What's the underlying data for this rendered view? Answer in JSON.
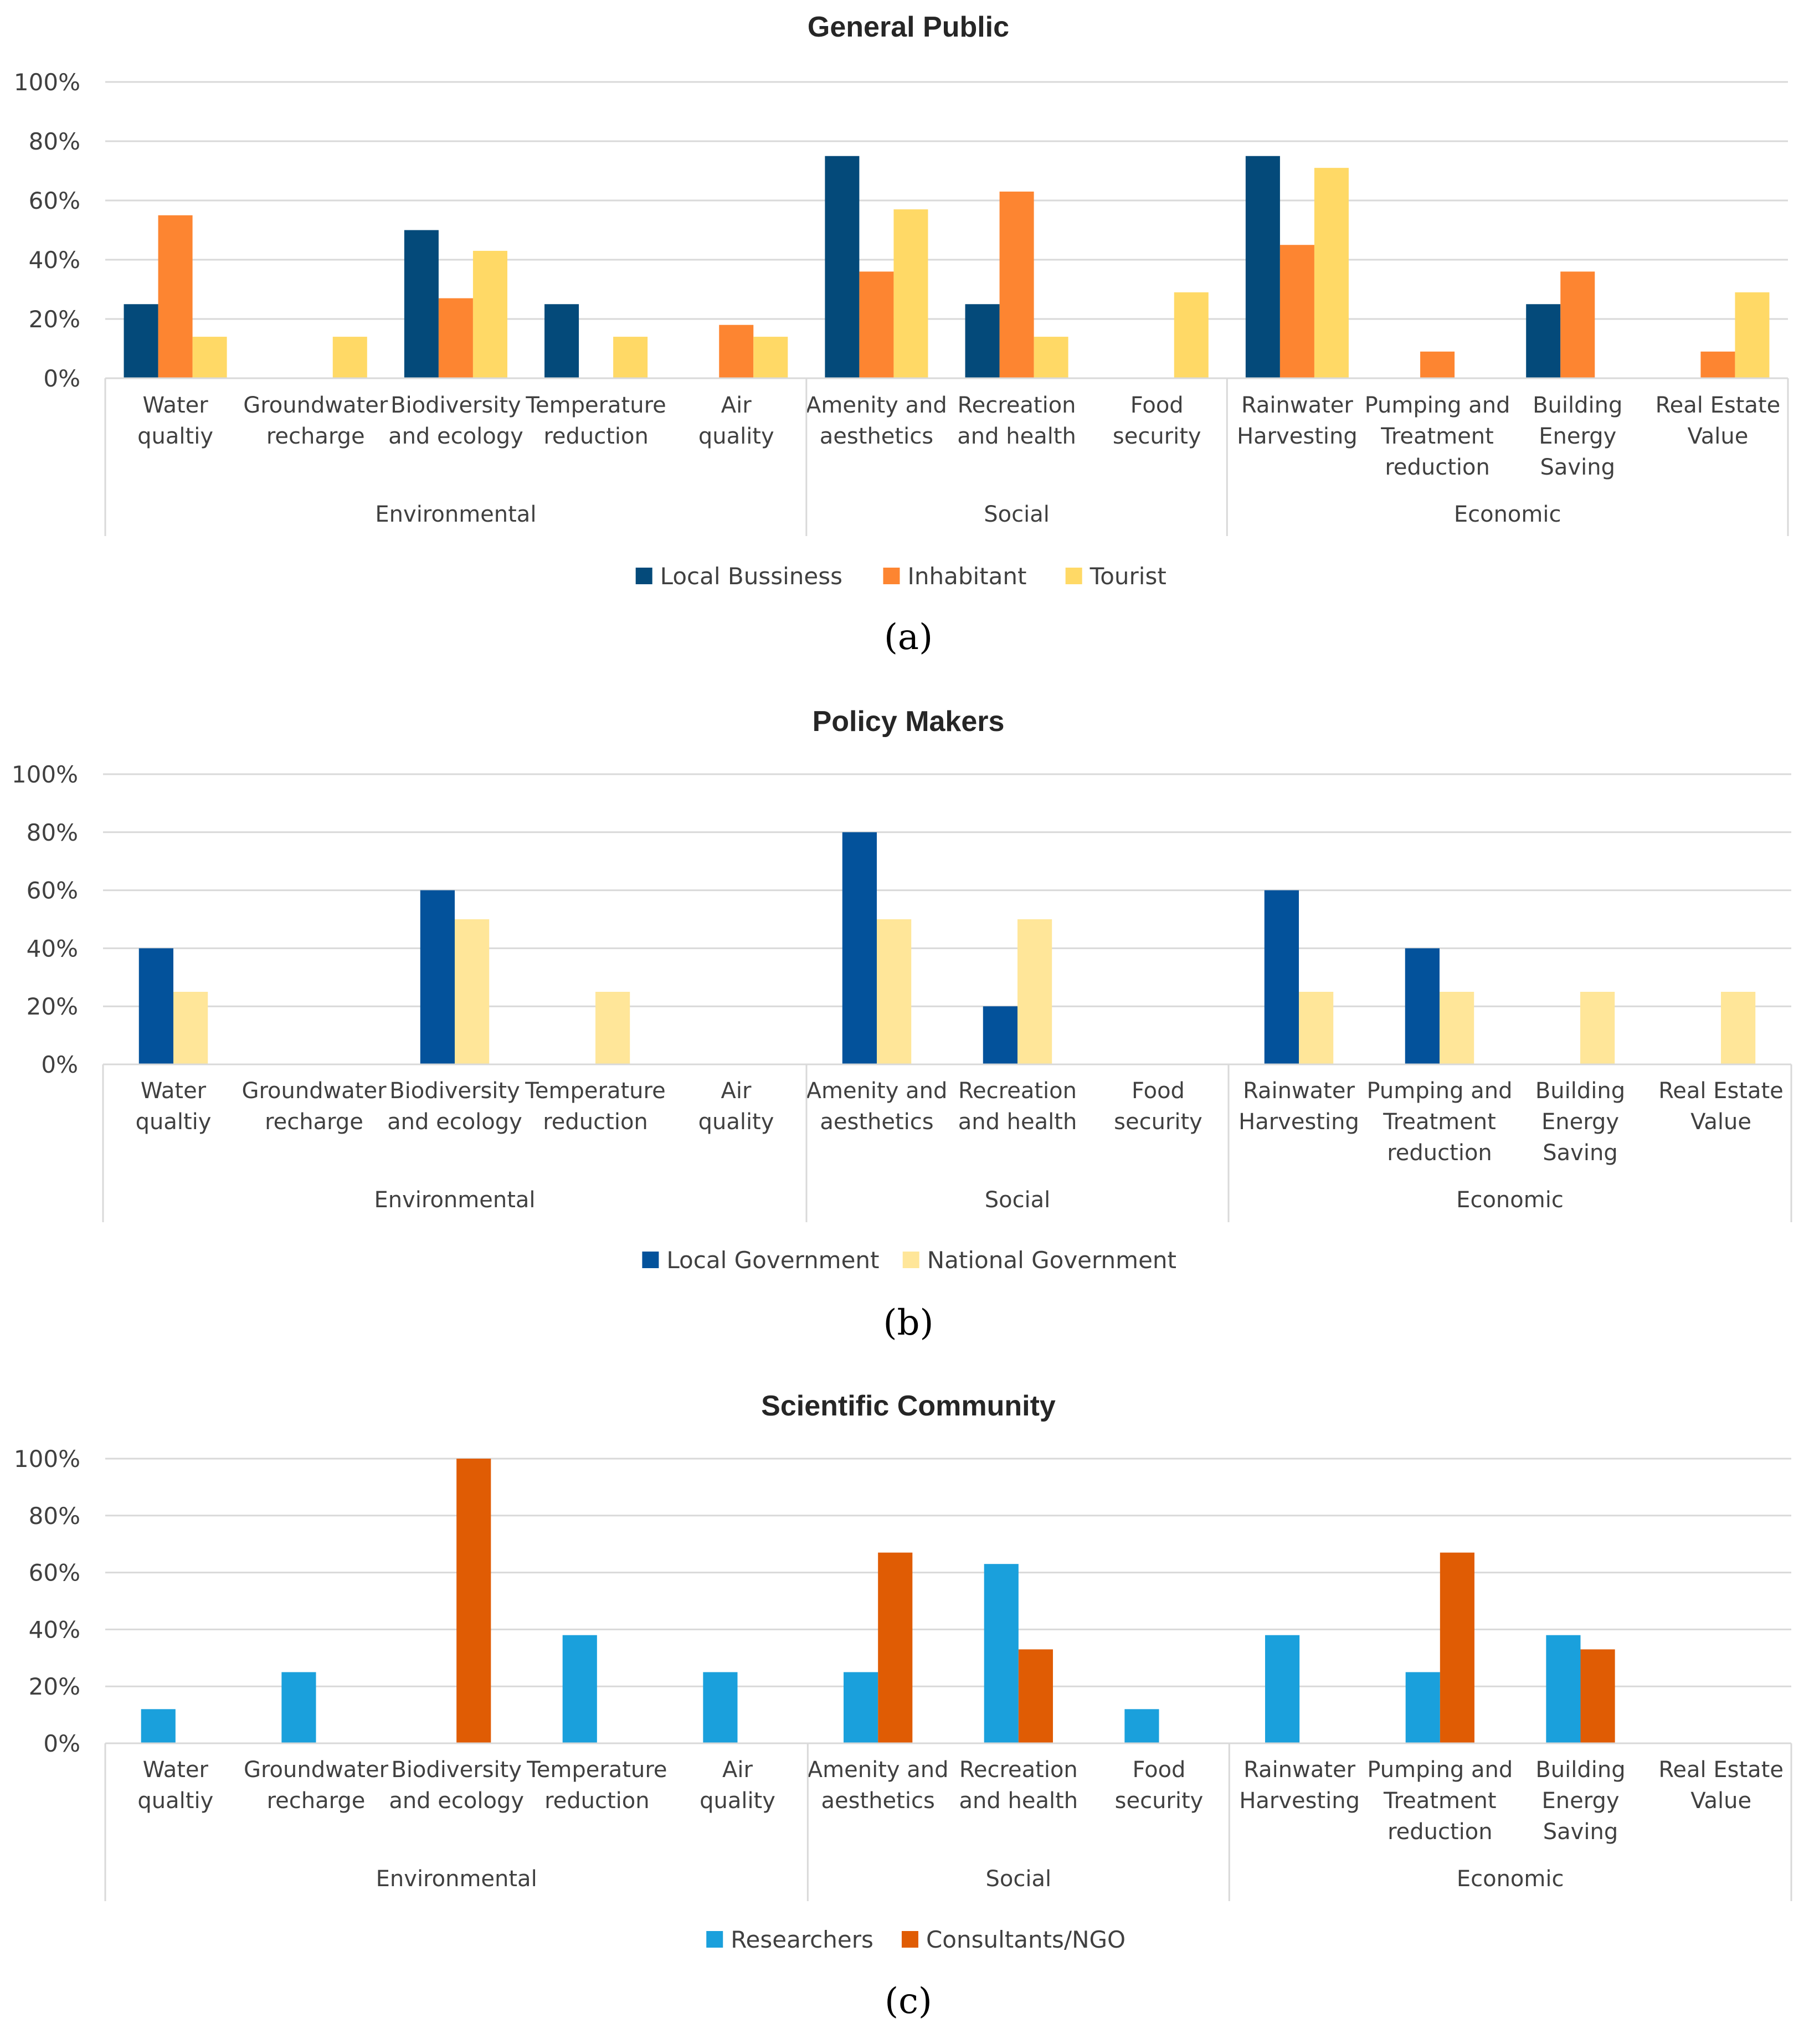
{
  "chart_data": [
    {
      "type": "bar",
      "panel_label": "(a)",
      "title": "General Public",
      "ylim": [
        0,
        100
      ],
      "yticks": [
        "0%",
        "20%",
        "40%",
        "60%",
        "80%",
        "100%"
      ],
      "categories": [
        [
          "Water",
          "qualtiy"
        ],
        [
          "Groundwater",
          "recharge"
        ],
        [
          "Biodiversity",
          "and ecology"
        ],
        [
          "Temperature",
          "reduction"
        ],
        [
          "Air",
          "quality"
        ],
        [
          "Amenity and",
          "aesthetics"
        ],
        [
          "Recreation",
          "and health"
        ],
        [
          "Food",
          "security"
        ],
        [
          "Rainwater",
          "Harvesting"
        ],
        [
          "Pumping and",
          "Treatment",
          "reduction"
        ],
        [
          "Building",
          "Energy",
          "Saving"
        ],
        [
          "Real Estate",
          "Value"
        ]
      ],
      "groups": [
        {
          "label": "Environmental",
          "count": 5
        },
        {
          "label": "Social",
          "count": 3
        },
        {
          "label": "Economic",
          "count": 4
        }
      ],
      "series": [
        {
          "name": "Local Bussiness",
          "color": "#044a7a",
          "values": [
            25,
            0,
            50,
            25,
            0,
            75,
            25,
            0,
            75,
            0,
            25,
            0
          ]
        },
        {
          "name": "Inhabitant",
          "color": "#fd8531",
          "values": [
            55,
            0,
            27,
            0,
            18,
            36,
            63,
            0,
            45,
            9,
            36,
            9
          ]
        },
        {
          "name": "Tourist",
          "color": "#ffd966",
          "values": [
            14,
            14,
            43,
            14,
            14,
            57,
            14,
            29,
            71,
            0,
            0,
            29
          ]
        }
      ],
      "legend": "bottom",
      "grid": true
    },
    {
      "type": "bar",
      "panel_label": "(b)",
      "title": "Policy Makers",
      "ylim": [
        0,
        100
      ],
      "yticks": [
        "0%",
        "20%",
        "40%",
        "60%",
        "80%",
        "100%"
      ],
      "categories": [
        [
          "Water",
          "qualtiy"
        ],
        [
          "Groundwater",
          "recharge"
        ],
        [
          "Biodiversity",
          "and ecology"
        ],
        [
          "Temperature",
          "reduction"
        ],
        [
          "Air",
          "quality"
        ],
        [
          "Amenity and",
          "aesthetics"
        ],
        [
          "Recreation",
          "and health"
        ],
        [
          "Food",
          "security"
        ],
        [
          "Rainwater",
          "Harvesting"
        ],
        [
          "Pumping and",
          "Treatment",
          "reduction"
        ],
        [
          "Building",
          "Energy",
          "Saving"
        ],
        [
          "Real Estate",
          "Value"
        ]
      ],
      "groups": [
        {
          "label": "Environmental",
          "count": 5
        },
        {
          "label": "Social",
          "count": 3
        },
        {
          "label": "Economic",
          "count": 4
        }
      ],
      "series": [
        {
          "name": "Local Government",
          "color": "#03529b",
          "values": [
            40,
            0,
            60,
            0,
            0,
            80,
            20,
            0,
            60,
            40,
            0,
            0
          ]
        },
        {
          "name": "National Government",
          "color": "#ffe699",
          "values": [
            25,
            0,
            50,
            25,
            0,
            50,
            50,
            0,
            25,
            25,
            25,
            25
          ]
        }
      ],
      "legend": "bottom",
      "grid": true
    },
    {
      "type": "bar",
      "panel_label": "(c)",
      "title": "Scientific Community",
      "ylim": [
        0,
        100
      ],
      "yticks": [
        "0%",
        "20%",
        "40%",
        "60%",
        "80%",
        "100%"
      ],
      "categories": [
        [
          "Water",
          "qualtiy"
        ],
        [
          "Groundwater",
          "recharge"
        ],
        [
          "Biodiversity",
          "and ecology"
        ],
        [
          "Temperature",
          "reduction"
        ],
        [
          "Air",
          "quality"
        ],
        [
          "Amenity and",
          "aesthetics"
        ],
        [
          "Recreation",
          "and health"
        ],
        [
          "Food",
          "security"
        ],
        [
          "Rainwater",
          "Harvesting"
        ],
        [
          "Pumping and",
          "Treatment",
          "reduction"
        ],
        [
          "Building",
          "Energy",
          "Saving"
        ],
        [
          "Real Estate",
          "Value"
        ]
      ],
      "groups": [
        {
          "label": "Environmental",
          "count": 5
        },
        {
          "label": "Social",
          "count": 3
        },
        {
          "label": "Economic",
          "count": 4
        }
      ],
      "series": [
        {
          "name": "Researchers",
          "color": "#1aa0dc",
          "values": [
            12,
            25,
            0,
            38,
            25,
            25,
            63,
            12,
            38,
            25,
            38,
            0
          ]
        },
        {
          "name": "Consultants/NGO",
          "color": "#e05c04",
          "values": [
            0,
            0,
            100,
            0,
            0,
            67,
            33,
            0,
            0,
            67,
            33,
            0
          ]
        }
      ],
      "legend": "bottom",
      "grid": true
    }
  ]
}
